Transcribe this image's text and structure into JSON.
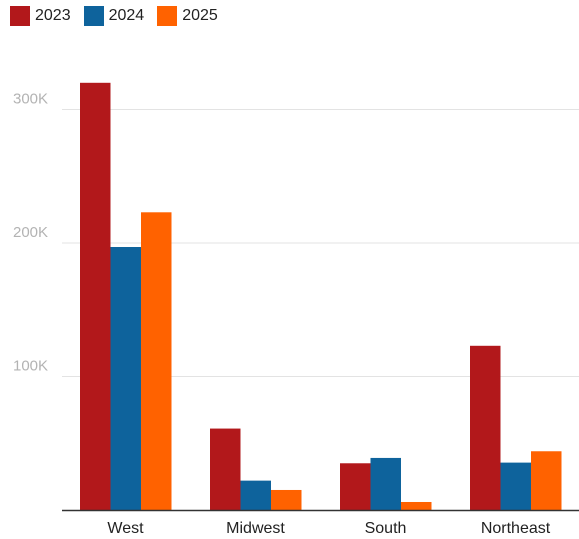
{
  "chart_data": {
    "type": "bar",
    "categories": [
      "West",
      "Midwest",
      "South",
      "Northeast"
    ],
    "series": [
      {
        "name": "2023",
        "color": "#b2181b",
        "values": [
          320000,
          61000,
          35000,
          123000
        ]
      },
      {
        "name": "2024",
        "color": "#0e639c",
        "values": [
          197000,
          22000,
          39000,
          35500
        ]
      },
      {
        "name": "2025",
        "color": "#ff6200",
        "values": [
          223000,
          15000,
          6000,
          44000
        ]
      }
    ],
    "y_ticks": [
      {
        "value": 100000,
        "label": "100K"
      },
      {
        "value": 200000,
        "label": "200K"
      },
      {
        "value": 300000,
        "label": "300K"
      }
    ],
    "ylim": [
      0,
      330000
    ],
    "grid": true,
    "legend_position": "top-left",
    "title": "",
    "xlabel": "",
    "ylabel": ""
  }
}
